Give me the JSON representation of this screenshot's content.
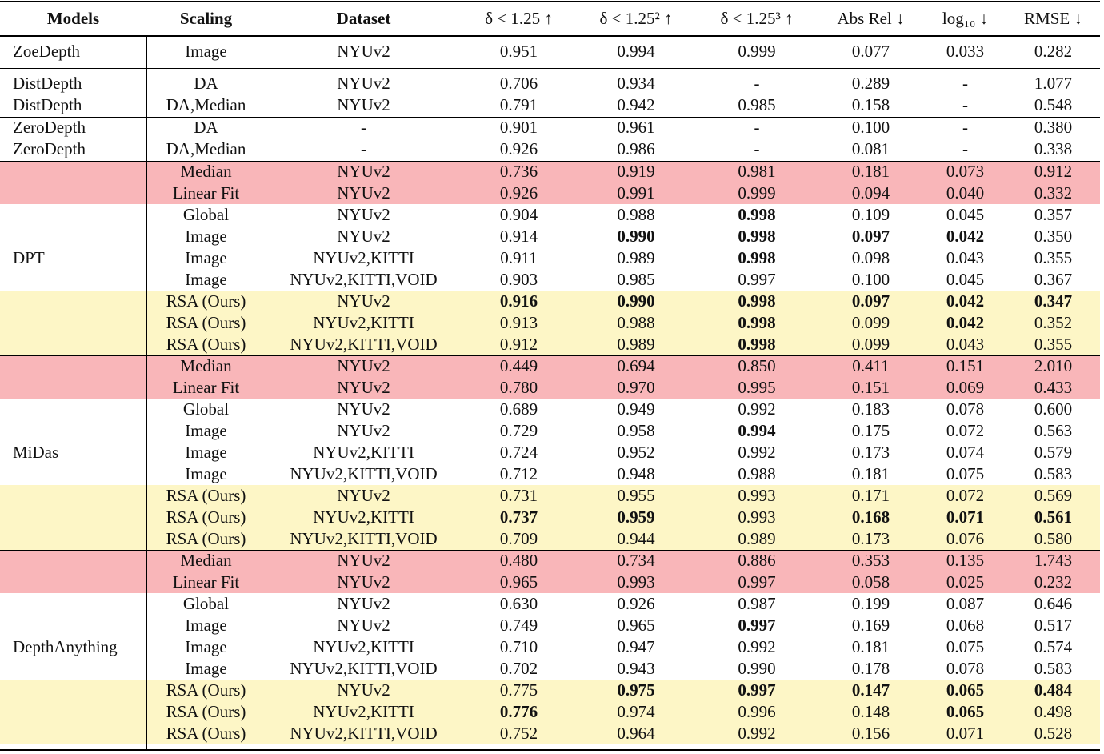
{
  "table": {
    "header": [
      "Models",
      "Scaling",
      "Dataset",
      "δ < 1.25 ↑",
      "δ < 1.25² ↑",
      "δ < 1.25³ ↑",
      "Abs Rel ↓",
      "log₁₀ ↓",
      "RMSE ↓"
    ],
    "groups": [
      {
        "rows": [
          {
            "cells": [
              "ZoeDepth",
              "Image",
              "NYUv2",
              "0.951",
              "0.994",
              "0.999",
              "0.077",
              "0.033",
              "0.282"
            ]
          }
        ]
      },
      {
        "rows": [
          {
            "cells": [
              "DistDepth",
              "DA",
              "NYUv2",
              "0.706",
              "0.934",
              "-",
              "0.289",
              "-",
              "1.077"
            ]
          },
          {
            "cells": [
              "DistDepth",
              "DA,Median",
              "NYUv2",
              "0.791",
              "0.942",
              "0.985",
              "0.158",
              "-",
              "0.548"
            ]
          }
        ]
      },
      {
        "rows": [
          {
            "cells": [
              "ZeroDepth",
              "DA",
              "-",
              "0.901",
              "0.961",
              "-",
              "0.100",
              "-",
              "0.380"
            ]
          },
          {
            "cells": [
              "ZeroDepth",
              "DA,Median",
              "-",
              "0.926",
              "0.986",
              "-",
              "0.081",
              "-",
              "0.338"
            ]
          }
        ]
      },
      {
        "rows": [
          {
            "cells": [
              null,
              "Median",
              "NYUv2",
              "0.736",
              "0.919",
              "0.981",
              "0.181",
              "0.073",
              "0.912"
            ],
            "color": "#f9b6b9"
          },
          {
            "cells": [
              null,
              "Linear Fit",
              "NYUv2",
              "0.926",
              "0.991",
              "0.999",
              "0.094",
              "0.040",
              "0.332"
            ],
            "color": "#f9b6b9"
          },
          {
            "cells": [
              null,
              "Global",
              "NYUv2",
              "0.904",
              "0.988",
              "0.998",
              "0.109",
              "0.045",
              "0.357"
            ],
            "bold": [
              5
            ]
          },
          {
            "cells": [
              null,
              "Image",
              "NYUv2",
              "0.914",
              "0.990",
              "0.998",
              "0.097",
              "0.042",
              "0.350"
            ],
            "bold": [
              4,
              5,
              6,
              7
            ]
          },
          {
            "cells": [
              "DPT",
              "Image",
              "NYUv2,KITTI",
              "0.911",
              "0.989",
              "0.998",
              "0.098",
              "0.043",
              "0.355"
            ],
            "bold": [
              5
            ]
          },
          {
            "cells": [
              null,
              "Image",
              "NYUv2,KITTI,VOID",
              "0.903",
              "0.985",
              "0.997",
              "0.100",
              "0.045",
              "0.367"
            ]
          },
          {
            "cells": [
              null,
              "RSA (Ours)",
              "NYUv2",
              "0.916",
              "0.990",
              "0.998",
              "0.097",
              "0.042",
              "0.347"
            ],
            "color": "#fdf6c6",
            "bold": [
              3,
              4,
              5,
              6,
              7,
              8
            ]
          },
          {
            "cells": [
              null,
              "RSA (Ours)",
              "NYUv2,KITTI",
              "0.913",
              "0.988",
              "0.998",
              "0.099",
              "0.042",
              "0.352"
            ],
            "color": "#fdf6c6",
            "bold": [
              5,
              7
            ]
          },
          {
            "cells": [
              null,
              "RSA (Ours)",
              "NYUv2,KITTI,VOID",
              "0.912",
              "0.989",
              "0.998",
              "0.099",
              "0.043",
              "0.355"
            ],
            "color": "#fdf6c6",
            "bold": [
              5
            ]
          }
        ]
      },
      {
        "rows": [
          {
            "cells": [
              null,
              "Median",
              "NYUv2",
              "0.449",
              "0.694",
              "0.850",
              "0.411",
              "0.151",
              "2.010"
            ],
            "color": "#f9b6b9"
          },
          {
            "cells": [
              null,
              "Linear Fit",
              "NYUv2",
              "0.780",
              "0.970",
              "0.995",
              "0.151",
              "0.069",
              "0.433"
            ],
            "color": "#f9b6b9"
          },
          {
            "cells": [
              null,
              "Global",
              "NYUv2",
              "0.689",
              "0.949",
              "0.992",
              "0.183",
              "0.078",
              "0.600"
            ]
          },
          {
            "cells": [
              null,
              "Image",
              "NYUv2",
              "0.729",
              "0.958",
              "0.994",
              "0.175",
              "0.072",
              "0.563"
            ],
            "bold": [
              5
            ]
          },
          {
            "cells": [
              "MiDas",
              "Image",
              "NYUv2,KITTI",
              "0.724",
              "0.952",
              "0.992",
              "0.173",
              "0.074",
              "0.579"
            ]
          },
          {
            "cells": [
              null,
              "Image",
              "NYUv2,KITTI,VOID",
              "0.712",
              "0.948",
              "0.988",
              "0.181",
              "0.075",
              "0.583"
            ]
          },
          {
            "cells": [
              null,
              "RSA (Ours)",
              "NYUv2",
              "0.731",
              "0.955",
              "0.993",
              "0.171",
              "0.072",
              "0.569"
            ],
            "color": "#fdf6c6"
          },
          {
            "cells": [
              null,
              "RSA (Ours)",
              "NYUv2,KITTI",
              "0.737",
              "0.959",
              "0.993",
              "0.168",
              "0.071",
              "0.561"
            ],
            "color": "#fdf6c6",
            "bold": [
              3,
              4,
              6,
              7,
              8
            ]
          },
          {
            "cells": [
              null,
              "RSA (Ours)",
              "NYUv2,KITTI,VOID",
              "0.709",
              "0.944",
              "0.989",
              "0.173",
              "0.076",
              "0.580"
            ],
            "color": "#fdf6c6"
          }
        ]
      },
      {
        "rows": [
          {
            "cells": [
              null,
              "Median",
              "NYUv2",
              "0.480",
              "0.734",
              "0.886",
              "0.353",
              "0.135",
              "1.743"
            ],
            "color": "#f9b6b9"
          },
          {
            "cells": [
              null,
              "Linear Fit",
              "NYUv2",
              "0.965",
              "0.993",
              "0.997",
              "0.058",
              "0.025",
              "0.232"
            ],
            "color": "#f9b6b9"
          },
          {
            "cells": [
              null,
              "Global",
              "NYUv2",
              "0.630",
              "0.926",
              "0.987",
              "0.199",
              "0.087",
              "0.646"
            ]
          },
          {
            "cells": [
              null,
              "Image",
              "NYUv2",
              "0.749",
              "0.965",
              "0.997",
              "0.169",
              "0.068",
              "0.517"
            ],
            "bold": [
              5
            ]
          },
          {
            "cells": [
              "DepthAnything",
              "Image",
              "NYUv2,KITTI",
              "0.710",
              "0.947",
              "0.992",
              "0.181",
              "0.075",
              "0.574"
            ]
          },
          {
            "cells": [
              null,
              "Image",
              "NYUv2,KITTI,VOID",
              "0.702",
              "0.943",
              "0.990",
              "0.178",
              "0.078",
              "0.583"
            ]
          },
          {
            "cells": [
              null,
              "RSA (Ours)",
              "NYUv2",
              "0.775",
              "0.975",
              "0.997",
              "0.147",
              "0.065",
              "0.484"
            ],
            "color": "#fdf6c6",
            "bold": [
              4,
              5,
              6,
              7,
              8
            ]
          },
          {
            "cells": [
              null,
              "RSA (Ours)",
              "NYUv2,KITTI",
              "0.776",
              "0.974",
              "0.996",
              "0.148",
              "0.065",
              "0.498"
            ],
            "color": "#fdf6c6",
            "bold": [
              3,
              7
            ]
          },
          {
            "cells": [
              null,
              "RSA (Ours)",
              "NYUv2,KITTI,VOID",
              "0.752",
              "0.964",
              "0.992",
              "0.156",
              "0.071",
              "0.528"
            ],
            "color": "#fdf6c6"
          }
        ]
      }
    ]
  }
}
